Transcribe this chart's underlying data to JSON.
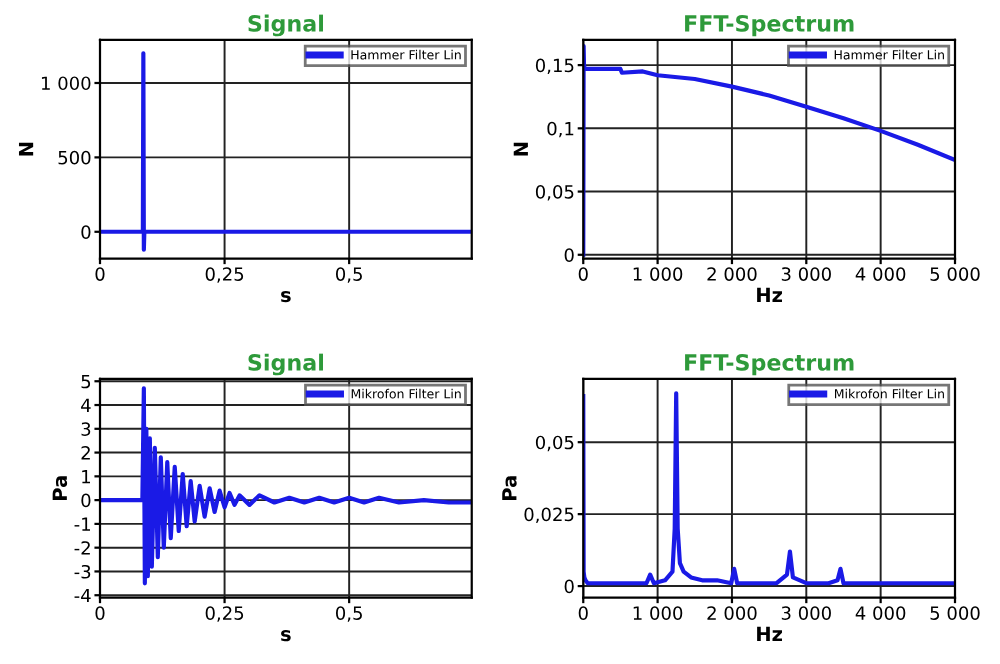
{
  "chart_data": [
    {
      "type": "line",
      "title": "Signal",
      "xlabel": "s",
      "ylabel": "N",
      "x": [
        0,
        0.086,
        0.087,
        0.088,
        0.089,
        0.09,
        0.746
      ],
      "series": [
        {
          "name": "Hammer Filter Lin",
          "color": "#1a1ae6",
          "values": [
            0,
            0,
            1200,
            -120,
            0,
            0,
            0
          ]
        }
      ],
      "xlim": [
        0,
        0.746
      ],
      "ylim": [
        -180,
        1290
      ],
      "xticks": [
        0,
        {
          "value": 0.25,
          "label": "0,25"
        },
        {
          "value": 0.5,
          "label": "0,5"
        }
      ],
      "yticks": [
        0,
        500,
        {
          "value": 1000,
          "label": "1 000"
        }
      ],
      "grid": true,
      "legend": "top right"
    },
    {
      "type": "line",
      "title": "FFT-Spectrum",
      "xlabel": "Hz",
      "ylabel": "N",
      "x": [
        0,
        5,
        10,
        20,
        100,
        300,
        500,
        520,
        800,
        1000,
        1500,
        2000,
        2500,
        3000,
        3500,
        4000,
        4500,
        5000
      ],
      "series": [
        {
          "name": "Hammer Filter Lin",
          "color": "#1a1ae6",
          "values": [
            0.0,
            0.165,
            0.15,
            0.147,
            0.147,
            0.147,
            0.147,
            0.144,
            0.145,
            0.142,
            0.139,
            0.133,
            0.126,
            0.117,
            0.108,
            0.098,
            0.087,
            0.075
          ]
        }
      ],
      "xlim": [
        0,
        5000
      ],
      "ylim": [
        -0.003,
        0.17
      ],
      "xticks": [
        0,
        {
          "value": 1000,
          "label": "1 000"
        },
        {
          "value": 2000,
          "label": "2 000"
        },
        {
          "value": 3000,
          "label": "3 000"
        },
        {
          "value": 4000,
          "label": "4 000"
        },
        {
          "value": 5000,
          "label": "5 000"
        }
      ],
      "yticks": [
        0,
        {
          "value": 0.05,
          "label": "0,05"
        },
        {
          "value": 0.1,
          "label": "0,1"
        },
        {
          "value": 0.15,
          "label": "0,15"
        }
      ],
      "grid": true,
      "legend": "top right"
    },
    {
      "type": "line",
      "title": "Signal",
      "xlabel": "s",
      "ylabel": "Pa",
      "x": [
        0,
        0.085,
        0.088,
        0.09,
        0.093,
        0.096,
        0.1,
        0.104,
        0.11,
        0.116,
        0.122,
        0.128,
        0.135,
        0.142,
        0.15,
        0.158,
        0.166,
        0.174,
        0.182,
        0.19,
        0.2,
        0.21,
        0.22,
        0.23,
        0.24,
        0.25,
        0.26,
        0.27,
        0.28,
        0.3,
        0.32,
        0.35,
        0.38,
        0.41,
        0.44,
        0.47,
        0.5,
        0.53,
        0.56,
        0.6,
        0.65,
        0.7,
        0.746
      ],
      "series": [
        {
          "name": "Mikrofon Filter Lin",
          "color": "#1a1ae6",
          "values": [
            0,
            0,
            4.7,
            -3.5,
            3.0,
            -3.2,
            2.6,
            -2.8,
            2.2,
            -2.4,
            1.8,
            -2.0,
            1.6,
            -1.6,
            1.4,
            -1.3,
            1.1,
            -1.1,
            0.8,
            -0.9,
            0.6,
            -0.7,
            0.5,
            -0.5,
            0.4,
            -0.3,
            0.3,
            -0.2,
            0.2,
            -0.2,
            0.2,
            -0.1,
            0.1,
            -0.1,
            0.1,
            -0.1,
            0.1,
            -0.1,
            0.1,
            -0.1,
            0.0,
            -0.1,
            -0.1
          ]
        }
      ],
      "xlim": [
        0,
        0.746
      ],
      "ylim": [
        -4.1,
        5.1
      ],
      "xticks": [
        0,
        {
          "value": 0.25,
          "label": "0,25"
        },
        {
          "value": 0.5,
          "label": "0,5"
        }
      ],
      "yticks": [
        -4,
        -3,
        -2,
        -1,
        0,
        1,
        2,
        3,
        4,
        5
      ],
      "grid": true,
      "legend": "top right"
    },
    {
      "type": "line",
      "title": "FFT-Spectrum",
      "xlabel": "Hz",
      "ylabel": "Pa",
      "x": [
        0,
        5,
        15,
        30,
        60,
        100,
        200,
        400,
        600,
        850,
        900,
        950,
        1100,
        1200,
        1230,
        1250,
        1270,
        1300,
        1350,
        1450,
        1600,
        1800,
        1990,
        2030,
        2070,
        2300,
        2600,
        2740,
        2780,
        2820,
        3000,
        3300,
        3420,
        3460,
        3500,
        3800,
        4200,
        4600,
        5000
      ],
      "series": [
        {
          "name": "Mikrofon Filter Lin",
          "color": "#1a1ae6",
          "values": [
            0.066,
            0.005,
            0.003,
            0.002,
            0.001,
            0.001,
            0.001,
            0.001,
            0.001,
            0.001,
            0.004,
            0.001,
            0.002,
            0.005,
            0.02,
            0.067,
            0.02,
            0.008,
            0.005,
            0.003,
            0.002,
            0.002,
            0.001,
            0.006,
            0.001,
            0.001,
            0.001,
            0.004,
            0.012,
            0.003,
            0.001,
            0.001,
            0.002,
            0.006,
            0.001,
            0.001,
            0.001,
            0.001,
            0.001
          ]
        }
      ],
      "xlim": [
        0,
        5000
      ],
      "ylim": [
        -0.004,
        0.072
      ],
      "xticks": [
        0,
        {
          "value": 1000,
          "label": "1 000"
        },
        {
          "value": 2000,
          "label": "2 000"
        },
        {
          "value": 3000,
          "label": "3 000"
        },
        {
          "value": 4000,
          "label": "4 000"
        },
        {
          "value": 5000,
          "label": "5 000"
        }
      ],
      "yticks": [
        0,
        {
          "value": 0.025,
          "label": "0,025"
        },
        {
          "value": 0.05,
          "label": "0,05"
        }
      ],
      "grid": true,
      "legend": "top right"
    }
  ]
}
